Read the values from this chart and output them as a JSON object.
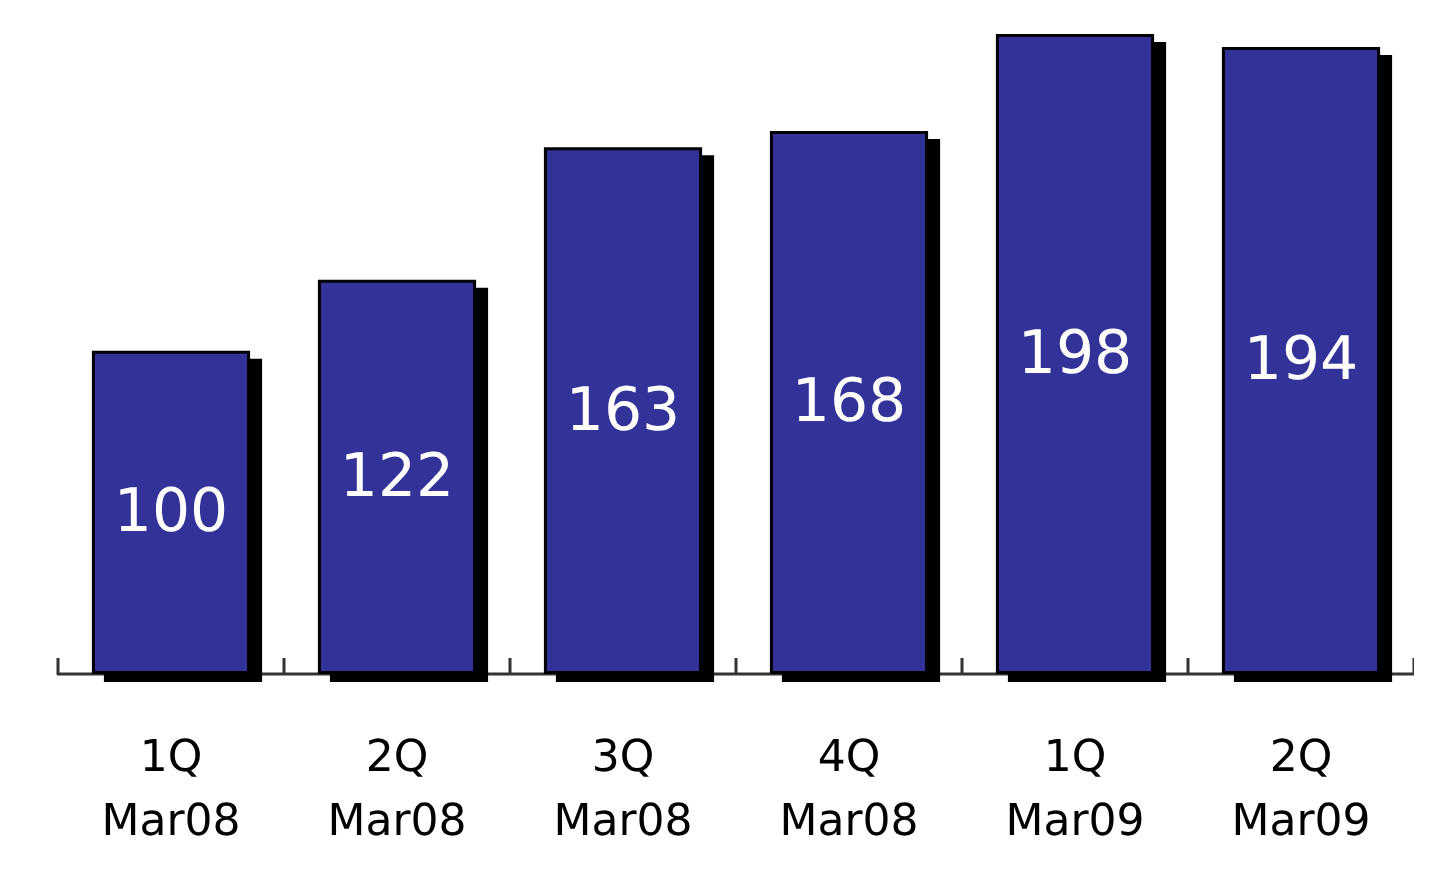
{
  "chart_data": {
    "type": "bar",
    "categories": [
      "1Q\nMar08",
      "2Q\nMar08",
      "3Q\nMar08",
      "4Q\nMar08",
      "1Q\nMar09",
      "2Q\nMar09"
    ],
    "values": [
      100,
      122,
      163,
      168,
      198,
      194
    ],
    "color": "#333399",
    "data_labels": true
  }
}
